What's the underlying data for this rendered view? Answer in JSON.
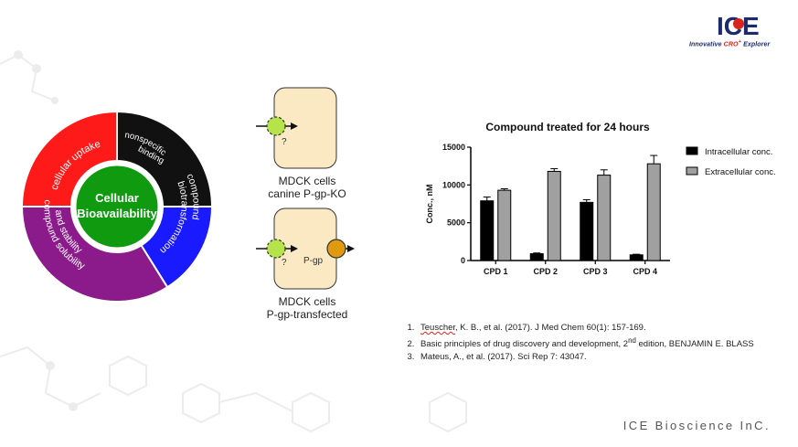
{
  "logo": {
    "mark": "ICE",
    "tagline_parts": [
      "Innovative ",
      "CRO",
      "+",
      " Explorer"
    ]
  },
  "donut": {
    "center_line1": "Cellular",
    "center_line2": "Bioavailability",
    "segments": [
      {
        "label": "cellular uptake",
        "color": "#111111"
      },
      {
        "label_line1": "nonspecific",
        "label_line2": "binding",
        "color": "#1a1aff"
      },
      {
        "label_line1": "compound",
        "label_line2": "biotransformation",
        "color": "#8b1a8b"
      },
      {
        "label_line1": "compound solubility",
        "label_line2": "and stability",
        "color": "#ff1a1a"
      }
    ],
    "center_color": "#109a10"
  },
  "mdck": {
    "cell1_caption1": "MDCK cells",
    "cell1_caption2": "canine P-gp-KO",
    "cell2_caption1": "MDCK cells",
    "cell2_caption2": "P-gp-transfected",
    "question_mark": "?",
    "pgp_label": "P-gp",
    "cell_fill": "#fbe9c3",
    "compound_color": "#b5e34a",
    "pgp_color": "#e09a10"
  },
  "chart_data": {
    "type": "bar",
    "title": "Compound treated for 24 hours",
    "xlabel": "",
    "ylabel": "Conc., nM",
    "categories": [
      "CPD 1",
      "CPD 2",
      "CPD 3",
      "CPD 4"
    ],
    "yticks": [
      0,
      5000,
      10000,
      15000
    ],
    "ylim": [
      0,
      15000
    ],
    "legend_position": "right",
    "series": [
      {
        "name": "Intracellular conc.",
        "color": "#000000",
        "values": [
          7900,
          900,
          7700,
          750
        ],
        "errors": [
          500,
          100,
          350,
          80
        ]
      },
      {
        "name": "Extracellular conc.",
        "color": "#a0a0a0",
        "values": [
          9300,
          11800,
          11300,
          12800
        ],
        "errors": [
          200,
          350,
          700,
          1100
        ]
      }
    ]
  },
  "references": [
    {
      "author": "Teuscher",
      "rest": ", K. B., et al. (2017).  J Med Chem 60(1): 157-169."
    },
    {
      "pre": "Basic principles of drug discovery and development, 2",
      "sup": "nd",
      "post": " edition, BENJAMIN E. BLASS"
    },
    {
      "text": "Mateus, A., et al. (2017). Sci Rep 7: 43047."
    }
  ],
  "footer": "ICE Bioscience InC."
}
